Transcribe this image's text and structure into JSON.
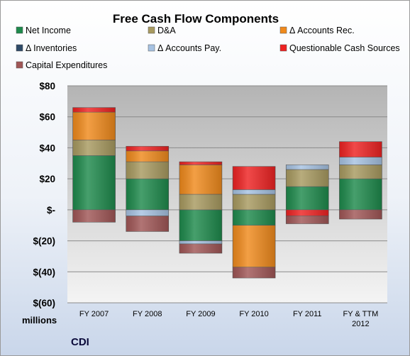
{
  "chart_data": {
    "type": "bar",
    "stacked": true,
    "title": "Free Cash Flow Components",
    "xlabel": "",
    "ylabel": "",
    "unit_label": "millions",
    "company": "CDI",
    "categories": [
      "FY 2007",
      "FY 2008",
      "FY 2009",
      "FY 2010",
      "FY 2011",
      "FY & TTM 2012"
    ],
    "category_lines": [
      [
        "FY 2007"
      ],
      [
        "FY 2008"
      ],
      [
        "FY 2009"
      ],
      [
        "FY 2010"
      ],
      [
        "FY 2011"
      ],
      [
        "FY & TTM",
        "2012"
      ]
    ],
    "ylim": [
      -60,
      80
    ],
    "yticks": [
      80,
      60,
      40,
      20,
      0,
      -20,
      -40,
      -60
    ],
    "ytick_labels": [
      "$80",
      "$60",
      "$40",
      "$20",
      "$-",
      "$(20)",
      "$(40)",
      "$(60)"
    ],
    "grid": true,
    "legend_position": "top",
    "series": [
      {
        "name": "Net Income",
        "color": "#1e8a4c",
        "values": [
          35,
          20,
          -20,
          -10,
          15,
          20
        ]
      },
      {
        "name": "D&A",
        "color": "#a89a60",
        "values": [
          10,
          11,
          10,
          10,
          11,
          9
        ]
      },
      {
        "name": "Δ Accounts Rec.",
        "color": "#f08a1c",
        "values": [
          18,
          7,
          19,
          -27,
          0,
          0
        ]
      },
      {
        "name": "Δ Inventories",
        "color": "#2e4a68",
        "values": [
          0,
          0,
          0,
          0,
          0,
          0
        ]
      },
      {
        "name": "Δ Accounts Pay.",
        "color": "#a6c2e2",
        "values": [
          0,
          -4,
          -2,
          3,
          3,
          5
        ]
      },
      {
        "name": "Questionable Cash Sources",
        "color": "#ee2222",
        "values": [
          3,
          3,
          2,
          15,
          -4,
          10
        ]
      },
      {
        "name": "Capital Expenditures",
        "color": "#a05656",
        "values": [
          -8,
          -10,
          -6,
          -7,
          -5,
          -6
        ]
      }
    ]
  }
}
